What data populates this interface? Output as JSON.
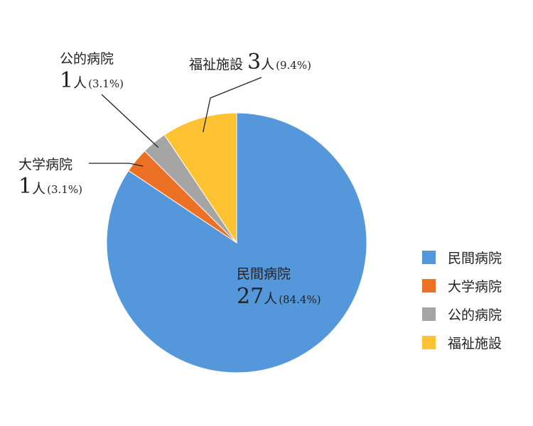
{
  "chart_data": {
    "type": "pie",
    "start_angle_deg": 0,
    "direction": "clockwise",
    "slices": [
      {
        "name": "民間病院",
        "value": 27,
        "count": "27",
        "unit": "人",
        "percent": "(84.4%)",
        "color": "#5497DB"
      },
      {
        "name": "大学病院",
        "value": 1,
        "count": "1",
        "unit": "人",
        "percent": "(3.1%)",
        "color": "#ED7125"
      },
      {
        "name": "公的病院",
        "value": 1,
        "count": "1",
        "unit": "人",
        "percent": "(3.1%)",
        "color": "#A5A5A5"
      },
      {
        "name": "福祉施設",
        "value": 3,
        "count": "3",
        "unit": "人",
        "percent": "(9.4%)",
        "color": "#FFC233"
      }
    ],
    "legend": {
      "position": "right",
      "entries": [
        "民間病院",
        "大学病院",
        "公的病院",
        "福祉施設"
      ]
    }
  }
}
